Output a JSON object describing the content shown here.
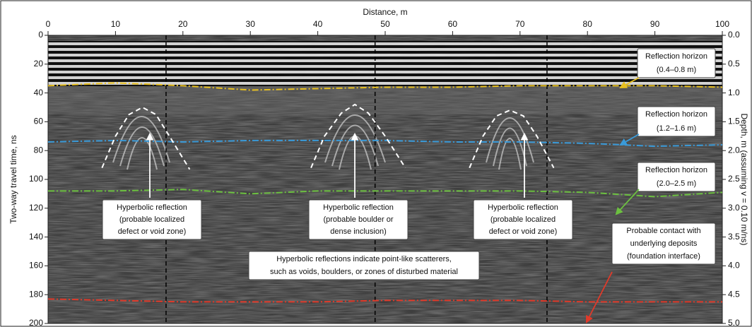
{
  "chart_data": {
    "type": "radargram",
    "x_label": "Distance, m",
    "y_label": "Two-way travel time, ns",
    "y2_label": "Depth, m (assuming v = 0.10 m/ns)",
    "xlim": [
      0,
      100
    ],
    "xticks": [
      0,
      10,
      20,
      30,
      40,
      50,
      60,
      70,
      80,
      90,
      100
    ],
    "ylim": [
      0,
      200
    ],
    "yticks": [
      0,
      20,
      40,
      60,
      80,
      100,
      120,
      140,
      160,
      180,
      200
    ],
    "y2lim": [
      0,
      5
    ],
    "y2ticks": [
      {
        "value": 0,
        "label": "0.0"
      },
      0.5,
      {
        "value": 1,
        "label": "1.0"
      },
      1.5,
      {
        "value": 2,
        "label": "2.0"
      },
      2.5,
      {
        "value": 3,
        "label": "3.0"
      },
      3.5,
      {
        "value": 4,
        "label": "4.0"
      },
      4.5,
      {
        "value": 5,
        "label": "5.0"
      }
    ],
    "dividers": [
      17.5,
      48.5,
      74
    ],
    "series": [
      {
        "color": "#e8c020",
        "style": "dashdot",
        "x": [
          0,
          10,
          20,
          30,
          40,
          50,
          60,
          70,
          80,
          90,
          100
        ],
        "values": [
          35,
          33,
          35,
          38,
          37,
          36,
          36,
          35,
          35,
          35,
          36
        ]
      },
      {
        "color": "#3a9ad8",
        "style": "dashdot",
        "x": [
          0,
          10,
          20,
          30,
          40,
          50,
          60,
          70,
          80,
          90,
          100
        ],
        "values": [
          74,
          73,
          74,
          73,
          73,
          73,
          74,
          74,
          75,
          77,
          76
        ]
      },
      {
        "color": "#6cc040",
        "style": "dashdot",
        "x": [
          0,
          10,
          20,
          30,
          40,
          50,
          60,
          70,
          80,
          90,
          100
        ],
        "values": [
          108,
          108,
          107,
          110,
          108,
          108,
          108,
          108,
          109,
          112,
          109
        ]
      },
      {
        "color": "#e03a2a",
        "style": "dashdot",
        "x": [
          0,
          10,
          20,
          30,
          40,
          50,
          60,
          70,
          80,
          90,
          100
        ],
        "values": [
          183,
          184,
          185,
          185,
          185,
          184,
          184,
          184,
          185,
          185,
          185
        ]
      },
      {
        "color": "#ffffff",
        "style": "dashed",
        "x": [
          8,
          10,
          12,
          14,
          16,
          18,
          21
        ],
        "values": [
          92,
          70,
          55,
          50,
          55,
          70,
          93
        ]
      },
      {
        "color": "#ffffff",
        "style": "dashed",
        "x": [
          39,
          41,
          43.5,
          45.5,
          47.5,
          50,
          53
        ],
        "values": [
          92,
          70,
          54,
          48,
          54,
          70,
          92
        ]
      },
      {
        "color": "#ffffff",
        "style": "dashed",
        "x": [
          62.5,
          64.5,
          66.5,
          68.5,
          70.5,
          72.5,
          75
        ],
        "values": [
          92,
          70,
          56,
          52,
          56,
          70,
          92
        ]
      }
    ],
    "annotations": [
      {
        "lines": [
          "Reflection horizon",
          "(0.4–0.8 m)"
        ]
      },
      {
        "lines": [
          "Reflection horizon",
          "(1.2–1.6 m)"
        ]
      },
      {
        "lines": [
          "Reflection horizon",
          "(2.0–2.5 m)"
        ]
      },
      {
        "lines": [
          "Hyperbolic reflection",
          "(probable localized",
          "defect or void zone)"
        ]
      },
      {
        "lines": [
          "Hyperbolic reflection",
          "(probable boulder or",
          "dense inclusion)"
        ]
      },
      {
        "lines": [
          "Hyperbolic reflection",
          "(probable localized",
          "defect or void zone)"
        ]
      },
      {
        "lines": [
          "Hyperbolic reflections indicate point-like scatterers,",
          "such as voids, boulders, or zones of disturbed material"
        ]
      },
      {
        "lines": [
          "Probable contact with",
          "underlying deposits",
          "(foundation interface)"
        ]
      }
    ]
  }
}
